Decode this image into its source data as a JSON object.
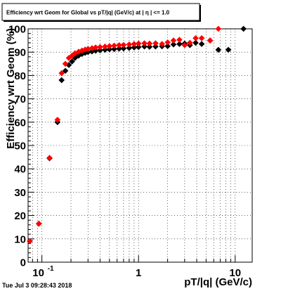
{
  "chart_data": {
    "type": "scatter",
    "title": "Efficiency wrt Geom for Global vs pT/|q| (GeV/c) at | η | <= 1.0",
    "xlabel": "pT/|q| (GeV/c)",
    "ylabel": "Efficiency wrt Geom (%)",
    "xscale": "log",
    "xlim": [
      0.072,
      15
    ],
    "ylim": [
      0,
      100
    ],
    "y_ticks": [
      "0",
      "10",
      "20",
      "30",
      "40",
      "50",
      "60",
      "70",
      "80",
      "90",
      "100"
    ],
    "x_ticks": [
      {
        "value": 0.1,
        "label": "10",
        "exp": "-1"
      },
      {
        "value": 1,
        "label": "1",
        "exp": ""
      },
      {
        "value": 10,
        "label": "10",
        "exp": ""
      }
    ],
    "grid": true,
    "footer": "Tue Jul  3 09:28:43 2018",
    "series": [
      {
        "color": "#000000",
        "marker": "diamond",
        "points": [
          {
            "x": 0.075,
            "y": 9
          },
          {
            "x": 0.093,
            "y": 16.5
          },
          {
            "x": 0.12,
            "y": 44.5
          },
          {
            "x": 0.145,
            "y": 60
          },
          {
            "x": 0.16,
            "y": 78
          },
          {
            "x": 0.175,
            "y": 82
          },
          {
            "x": 0.19,
            "y": 84.5
          },
          {
            "x": 0.205,
            "y": 86
          },
          {
            "x": 0.22,
            "y": 87.5
          },
          {
            "x": 0.24,
            "y": 88.5
          },
          {
            "x": 0.26,
            "y": 89.2
          },
          {
            "x": 0.28,
            "y": 89.7
          },
          {
            "x": 0.3,
            "y": 90
          },
          {
            "x": 0.33,
            "y": 90.3
          },
          {
            "x": 0.36,
            "y": 90.6
          },
          {
            "x": 0.4,
            "y": 90.8
          },
          {
            "x": 0.45,
            "y": 91
          },
          {
            "x": 0.5,
            "y": 91.2
          },
          {
            "x": 0.56,
            "y": 91.3
          },
          {
            "x": 0.63,
            "y": 91.5
          },
          {
            "x": 0.7,
            "y": 91.6
          },
          {
            "x": 0.8,
            "y": 91.8
          },
          {
            "x": 0.9,
            "y": 92
          },
          {
            "x": 1.0,
            "y": 92.2
          },
          {
            "x": 1.15,
            "y": 92.4
          },
          {
            "x": 1.3,
            "y": 92.3
          },
          {
            "x": 1.5,
            "y": 92.4
          },
          {
            "x": 1.75,
            "y": 92.5
          },
          {
            "x": 2.0,
            "y": 92.6
          },
          {
            "x": 2.3,
            "y": 93.3
          },
          {
            "x": 2.65,
            "y": 93.5
          },
          {
            "x": 3.0,
            "y": 93.7
          },
          {
            "x": 3.4,
            "y": 93
          },
          {
            "x": 3.9,
            "y": 94
          },
          {
            "x": 4.5,
            "y": 93.5
          },
          {
            "x": 5.5,
            "y": 95
          },
          {
            "x": 6.7,
            "y": 91
          },
          {
            "x": 8.5,
            "y": 91
          },
          {
            "x": 12.2,
            "y": 100
          }
        ]
      },
      {
        "color": "#ff0000",
        "marker": "diamond",
        "points": [
          {
            "x": 0.075,
            "y": 9
          },
          {
            "x": 0.093,
            "y": 16.5
          },
          {
            "x": 0.12,
            "y": 44.7
          },
          {
            "x": 0.145,
            "y": 61
          },
          {
            "x": 0.16,
            "y": 81
          },
          {
            "x": 0.175,
            "y": 85
          },
          {
            "x": 0.19,
            "y": 87.5
          },
          {
            "x": 0.205,
            "y": 88.5
          },
          {
            "x": 0.22,
            "y": 89.5
          },
          {
            "x": 0.24,
            "y": 90.2
          },
          {
            "x": 0.26,
            "y": 90.7
          },
          {
            "x": 0.28,
            "y": 91.1
          },
          {
            "x": 0.3,
            "y": 91.4
          },
          {
            "x": 0.33,
            "y": 91.7
          },
          {
            "x": 0.36,
            "y": 92
          },
          {
            "x": 0.4,
            "y": 92.2
          },
          {
            "x": 0.45,
            "y": 92.4
          },
          {
            "x": 0.5,
            "y": 92.6
          },
          {
            "x": 0.56,
            "y": 92.8
          },
          {
            "x": 0.63,
            "y": 93
          },
          {
            "x": 0.7,
            "y": 93.1
          },
          {
            "x": 0.8,
            "y": 93.3
          },
          {
            "x": 0.9,
            "y": 93.5
          },
          {
            "x": 1.0,
            "y": 93.7
          },
          {
            "x": 1.15,
            "y": 93.8
          },
          {
            "x": 1.3,
            "y": 93.7
          },
          {
            "x": 1.5,
            "y": 93.8
          },
          {
            "x": 1.75,
            "y": 93.5
          },
          {
            "x": 2.0,
            "y": 94.2
          },
          {
            "x": 2.3,
            "y": 95
          },
          {
            "x": 2.65,
            "y": 95.3
          },
          {
            "x": 3.0,
            "y": 93
          },
          {
            "x": 3.4,
            "y": 94
          },
          {
            "x": 3.9,
            "y": 96
          },
          {
            "x": 4.5,
            "y": 96
          },
          {
            "x": 5.5,
            "y": 95
          },
          {
            "x": 6.7,
            "y": 100
          }
        ]
      }
    ]
  }
}
